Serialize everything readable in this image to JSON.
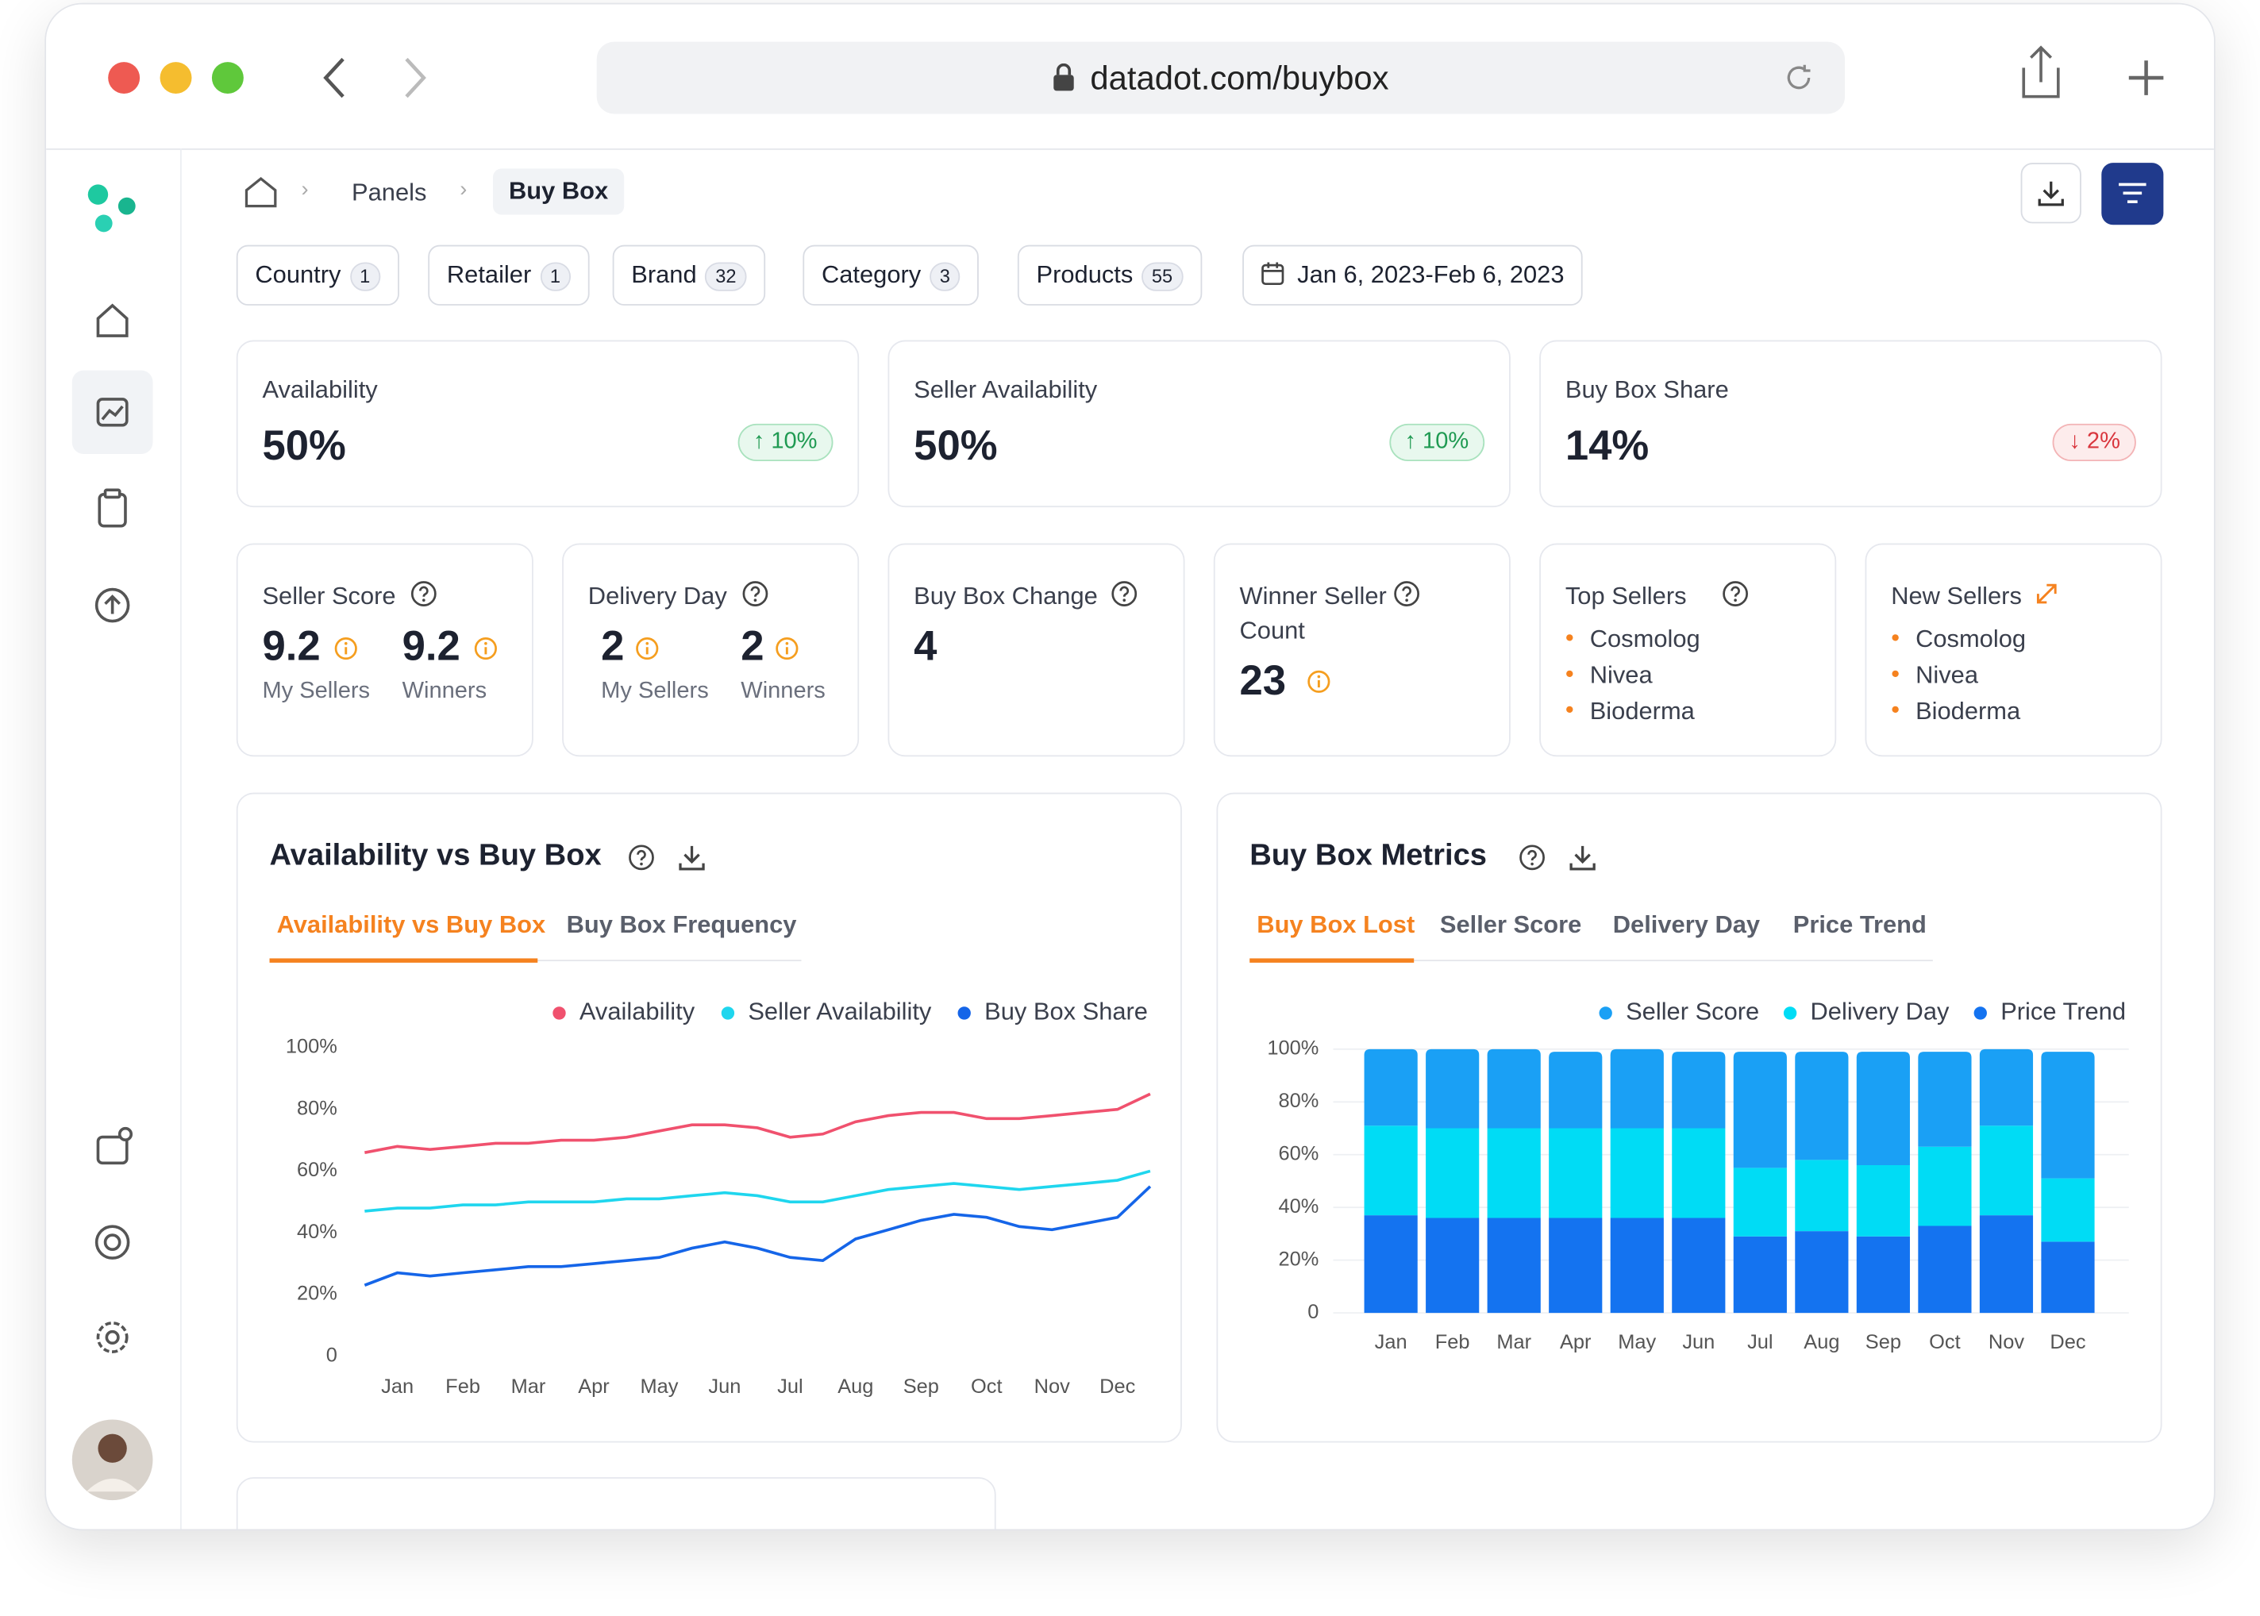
{
  "browser": {
    "url": "datadot.com/buybox"
  },
  "breadcrumb": [
    "Panels",
    "Buy Box"
  ],
  "filters": [
    {
      "label": "Country",
      "count": 1
    },
    {
      "label": "Retailer",
      "count": 1
    },
    {
      "label": "Brand",
      "count": 32
    },
    {
      "label": "Category",
      "count": 3
    },
    {
      "label": "Products",
      "count": 55
    }
  ],
  "date_range": "Jan 6, 2023-Feb 6, 2023",
  "kpis": [
    {
      "label": "Availability",
      "value": "50%",
      "change": "10%",
      "trend": "up"
    },
    {
      "label": "Seller Availability",
      "value": "50%",
      "change": "10%",
      "trend": "up"
    },
    {
      "label": "Buy Box Share",
      "value": "14%",
      "change": "2%",
      "trend": "down"
    }
  ],
  "score_cards": [
    {
      "title": "Seller Score",
      "metrics": [
        {
          "value": 9.2,
          "label": "My Sellers"
        },
        {
          "value": 9.2,
          "label": "Winners"
        }
      ]
    },
    {
      "title": "Delivery Day",
      "metrics": [
        {
          "value": 2,
          "label": "My Sellers"
        },
        {
          "value": 2,
          "label": "Winners"
        }
      ]
    },
    {
      "title": "Buy Box Change",
      "value": 4
    },
    {
      "title": "Winner Seller Count",
      "value": 23
    },
    {
      "title": "Top Sellers",
      "items": [
        "Cosmolog",
        "Nivea",
        "Bioderma"
      ]
    },
    {
      "title": "New Sellers",
      "items": [
        "Cosmolog",
        "Nivea",
        "Bioderma"
      ]
    }
  ],
  "chart_panels": [
    {
      "title": "Availability vs Buy Box",
      "tabs": [
        "Availability vs Buy Box",
        "Buy Box Frequency"
      ]
    },
    {
      "title": "Buy Box Metrics",
      "tabs": [
        "Buy Box Lost",
        "Seller Score",
        "Delivery Day",
        "Price Trend"
      ]
    }
  ],
  "chart_data": [
    {
      "type": "line",
      "categories": [
        null,
        "Jan",
        null,
        "Feb",
        null,
        "Mar",
        null,
        "Apr",
        null,
        "May",
        null,
        "Jun",
        null,
        "Jul",
        null,
        "Aug",
        null,
        "Sep",
        null,
        "Oct",
        null,
        "Nov",
        null,
        "Dec",
        null
      ],
      "series": [
        {
          "name": "Availability",
          "color": "#f0516e",
          "values": [
            66,
            68,
            67,
            68,
            69,
            69,
            70,
            70,
            71,
            73,
            75,
            75,
            74,
            71,
            72,
            76,
            78,
            79,
            79,
            77,
            77,
            78,
            79,
            80,
            85
          ]
        },
        {
          "name": "Seller Availability",
          "color": "#1fd6ee",
          "values": [
            47,
            48,
            48,
            49,
            49,
            50,
            50,
            50,
            51,
            51,
            52,
            53,
            52,
            50,
            50,
            52,
            54,
            55,
            56,
            55,
            54,
            55,
            56,
            57,
            60
          ]
        },
        {
          "name": "Buy Box Share",
          "color": "#1565e8",
          "values": [
            23,
            27,
            26,
            27,
            28,
            29,
            29,
            30,
            31,
            32,
            35,
            37,
            35,
            32,
            31,
            38,
            41,
            44,
            46,
            45,
            42,
            41,
            43,
            45,
            55
          ]
        }
      ],
      "ylim": [
        0,
        100
      ],
      "yticks": [
        0,
        {
          "value": 20,
          "label": "20%"
        },
        {
          "value": 40,
          "label": "40%"
        },
        {
          "value": 60,
          "label": "60%"
        },
        {
          "value": 80,
          "label": "80%"
        },
        {
          "value": 100,
          "label": "100%"
        }
      ],
      "grid": false
    },
    {
      "type": "stacked_bar",
      "categories": [
        "Jan",
        "Feb",
        "Mar",
        "Apr",
        "May",
        "Jun",
        "Jul",
        "Aug",
        "Sep",
        "Oct",
        "Nov",
        "Dec"
      ],
      "series": [
        {
          "name": "Seller Score",
          "color": "#1aa0f5",
          "values": [
            29,
            30,
            30,
            29,
            30,
            29,
            44,
            41,
            43,
            36,
            29,
            48
          ]
        },
        {
          "name": "Delivery Day",
          "color": "#00dcf5",
          "values": [
            34,
            34,
            34,
            34,
            34,
            34,
            26,
            27,
            27,
            30,
            34,
            24
          ]
        },
        {
          "name": "Price Trend",
          "color": "#1473f0",
          "values": [
            37,
            36,
            36,
            36,
            36,
            36,
            29,
            31,
            29,
            33,
            37,
            27
          ]
        }
      ],
      "ylim": [
        0,
        100
      ],
      "yticks": [
        0,
        {
          "value": 20,
          "label": "20%"
        },
        {
          "value": 40,
          "label": "40%"
        },
        {
          "value": 60,
          "label": "60%"
        },
        {
          "value": 80,
          "label": "80%"
        },
        {
          "value": 100,
          "label": "100%"
        }
      ],
      "grid": true
    }
  ]
}
